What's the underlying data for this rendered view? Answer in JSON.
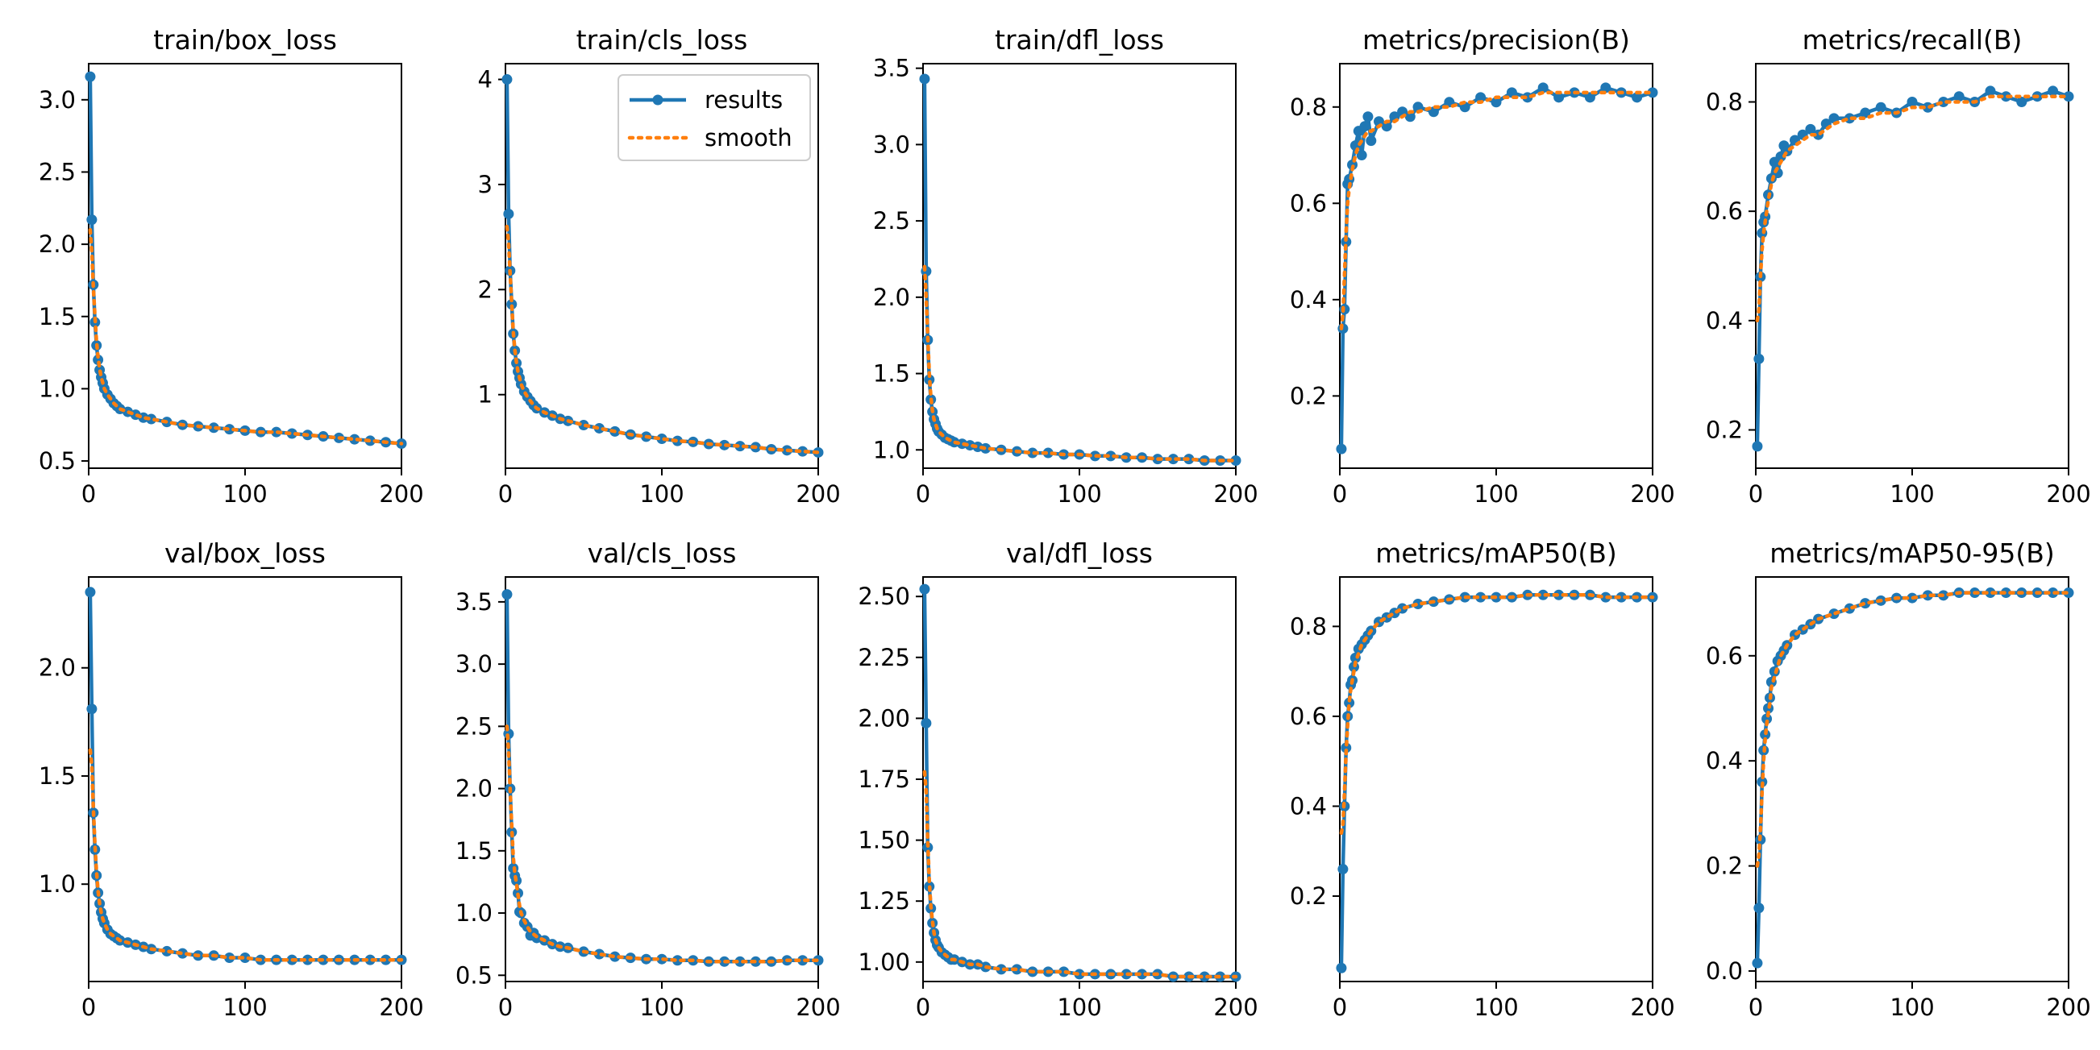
{
  "figure": {
    "series_color": "#1f77b4",
    "smooth_color": "#ff7f0e",
    "legend_results": "results",
    "legend_smooth": "smooth"
  },
  "chart_data": [
    {
      "type": "line",
      "title": "train/box_loss",
      "xlim": [
        0,
        200
      ],
      "ylim": [
        0.45,
        3.25
      ],
      "xticks": [
        0,
        100,
        200
      ],
      "yticks": [
        0.5,
        1.0,
        1.5,
        2.0,
        2.5,
        3.0
      ],
      "x": [
        1,
        2,
        3,
        4,
        5,
        6,
        7,
        8,
        9,
        10,
        12,
        14,
        16,
        18,
        20,
        25,
        30,
        35,
        40,
        50,
        60,
        70,
        80,
        90,
        100,
        110,
        120,
        130,
        140,
        150,
        160,
        170,
        180,
        190,
        200
      ],
      "results": [
        3.16,
        2.17,
        1.72,
        1.46,
        1.3,
        1.2,
        1.13,
        1.08,
        1.04,
        1.0,
        0.96,
        0.93,
        0.9,
        0.88,
        0.86,
        0.84,
        0.82,
        0.8,
        0.79,
        0.77,
        0.75,
        0.74,
        0.73,
        0.72,
        0.71,
        0.7,
        0.7,
        0.69,
        0.68,
        0.67,
        0.66,
        0.65,
        0.64,
        0.63,
        0.62
      ],
      "smooth": [
        2.1,
        1.95,
        1.7,
        1.5,
        1.33,
        1.22,
        1.14,
        1.08,
        1.04,
        1.0,
        0.96,
        0.93,
        0.9,
        0.88,
        0.86,
        0.84,
        0.82,
        0.8,
        0.79,
        0.77,
        0.75,
        0.74,
        0.73,
        0.72,
        0.71,
        0.7,
        0.7,
        0.69,
        0.68,
        0.67,
        0.66,
        0.65,
        0.64,
        0.63,
        0.62
      ]
    },
    {
      "type": "line",
      "title": "train/cls_loss",
      "xlim": [
        0,
        200
      ],
      "ylim": [
        0.3,
        4.15
      ],
      "xticks": [
        0,
        100,
        200
      ],
      "yticks": [
        1,
        2,
        3,
        4
      ],
      "legend": true,
      "x": [
        1,
        2,
        3,
        4,
        5,
        6,
        7,
        8,
        9,
        10,
        12,
        14,
        16,
        18,
        20,
        25,
        30,
        35,
        40,
        50,
        60,
        70,
        80,
        90,
        100,
        110,
        120,
        130,
        140,
        150,
        160,
        170,
        180,
        190,
        200
      ],
      "results": [
        4.0,
        2.72,
        2.18,
        1.86,
        1.58,
        1.42,
        1.3,
        1.22,
        1.16,
        1.1,
        1.03,
        0.98,
        0.94,
        0.9,
        0.87,
        0.83,
        0.8,
        0.77,
        0.75,
        0.71,
        0.68,
        0.65,
        0.62,
        0.6,
        0.58,
        0.56,
        0.55,
        0.53,
        0.52,
        0.51,
        0.5,
        0.48,
        0.47,
        0.46,
        0.45
      ],
      "smooth": [
        2.6,
        2.45,
        2.15,
        1.86,
        1.6,
        1.43,
        1.31,
        1.22,
        1.16,
        1.1,
        1.03,
        0.98,
        0.94,
        0.9,
        0.87,
        0.83,
        0.8,
        0.77,
        0.75,
        0.71,
        0.68,
        0.65,
        0.62,
        0.6,
        0.58,
        0.56,
        0.55,
        0.53,
        0.52,
        0.51,
        0.5,
        0.48,
        0.47,
        0.46,
        0.45
      ]
    },
    {
      "type": "line",
      "title": "train/dfl_loss",
      "xlim": [
        0,
        200
      ],
      "ylim": [
        0.88,
        3.53
      ],
      "xticks": [
        0,
        100,
        200
      ],
      "yticks": [
        1.0,
        1.5,
        2.0,
        2.5,
        3.0,
        3.5
      ],
      "x": [
        1,
        2,
        3,
        4,
        5,
        6,
        7,
        8,
        9,
        10,
        12,
        14,
        16,
        18,
        20,
        25,
        30,
        35,
        40,
        50,
        60,
        70,
        80,
        90,
        100,
        110,
        120,
        130,
        140,
        150,
        160,
        170,
        180,
        190,
        200
      ],
      "results": [
        3.43,
        2.17,
        1.72,
        1.46,
        1.33,
        1.25,
        1.2,
        1.17,
        1.14,
        1.12,
        1.1,
        1.08,
        1.07,
        1.06,
        1.05,
        1.04,
        1.03,
        1.02,
        1.01,
        1.0,
        0.99,
        0.98,
        0.98,
        0.97,
        0.97,
        0.96,
        0.96,
        0.95,
        0.95,
        0.94,
        0.94,
        0.94,
        0.93,
        0.93,
        0.93
      ],
      "smooth": [
        2.2,
        2.0,
        1.75,
        1.5,
        1.35,
        1.26,
        1.2,
        1.17,
        1.14,
        1.12,
        1.1,
        1.08,
        1.07,
        1.06,
        1.05,
        1.04,
        1.03,
        1.02,
        1.01,
        1.0,
        0.99,
        0.98,
        0.98,
        0.97,
        0.97,
        0.96,
        0.96,
        0.95,
        0.95,
        0.94,
        0.94,
        0.94,
        0.93,
        0.93,
        0.93
      ]
    },
    {
      "type": "line",
      "title": "metrics/precision(B)",
      "xlim": [
        0,
        200
      ],
      "ylim": [
        0.05,
        0.89
      ],
      "xticks": [
        0,
        100,
        200
      ],
      "yticks": [
        0.2,
        0.4,
        0.6,
        0.8
      ],
      "x": [
        1,
        2,
        3,
        4,
        5,
        6,
        8,
        10,
        12,
        14,
        16,
        18,
        20,
        25,
        30,
        35,
        40,
        45,
        50,
        60,
        70,
        80,
        90,
        100,
        110,
        120,
        130,
        140,
        150,
        160,
        170,
        180,
        190,
        200
      ],
      "results": [
        0.09,
        0.34,
        0.38,
        0.52,
        0.64,
        0.65,
        0.68,
        0.72,
        0.75,
        0.7,
        0.76,
        0.78,
        0.73,
        0.77,
        0.76,
        0.78,
        0.79,
        0.78,
        0.8,
        0.79,
        0.81,
        0.8,
        0.82,
        0.81,
        0.83,
        0.82,
        0.84,
        0.82,
        0.83,
        0.82,
        0.84,
        0.83,
        0.82,
        0.83
      ],
      "smooth": [
        0.34,
        0.37,
        0.45,
        0.54,
        0.6,
        0.63,
        0.67,
        0.7,
        0.72,
        0.73,
        0.74,
        0.75,
        0.75,
        0.76,
        0.77,
        0.77,
        0.78,
        0.79,
        0.79,
        0.8,
        0.8,
        0.81,
        0.81,
        0.82,
        0.82,
        0.82,
        0.83,
        0.83,
        0.83,
        0.83,
        0.83,
        0.83,
        0.83,
        0.83
      ]
    },
    {
      "type": "line",
      "title": "metrics/recall(B)",
      "xlim": [
        0,
        200
      ],
      "ylim": [
        0.13,
        0.87
      ],
      "xticks": [
        0,
        100,
        200
      ],
      "yticks": [
        0.2,
        0.4,
        0.6,
        0.8
      ],
      "x": [
        1,
        2,
        3,
        4,
        5,
        6,
        8,
        10,
        12,
        14,
        16,
        18,
        20,
        25,
        30,
        35,
        40,
        45,
        50,
        60,
        70,
        80,
        90,
        100,
        110,
        120,
        130,
        140,
        150,
        160,
        170,
        180,
        190,
        200
      ],
      "results": [
        0.17,
        0.33,
        0.48,
        0.56,
        0.58,
        0.59,
        0.63,
        0.66,
        0.69,
        0.67,
        0.7,
        0.72,
        0.71,
        0.73,
        0.74,
        0.75,
        0.74,
        0.76,
        0.77,
        0.77,
        0.78,
        0.79,
        0.78,
        0.8,
        0.79,
        0.8,
        0.81,
        0.8,
        0.82,
        0.81,
        0.8,
        0.81,
        0.82,
        0.81
      ],
      "smooth": [
        0.4,
        0.42,
        0.48,
        0.53,
        0.56,
        0.58,
        0.62,
        0.65,
        0.67,
        0.68,
        0.69,
        0.7,
        0.71,
        0.72,
        0.73,
        0.74,
        0.74,
        0.75,
        0.76,
        0.77,
        0.77,
        0.78,
        0.78,
        0.79,
        0.79,
        0.8,
        0.8,
        0.8,
        0.81,
        0.81,
        0.81,
        0.81,
        0.81,
        0.81
      ]
    },
    {
      "type": "line",
      "title": "val/box_loss",
      "xlim": [
        0,
        200
      ],
      "ylim": [
        0.55,
        2.42
      ],
      "xticks": [
        0,
        100,
        200
      ],
      "yticks": [
        1.0,
        1.5,
        2.0
      ],
      "x": [
        1,
        2,
        3,
        4,
        5,
        6,
        7,
        8,
        9,
        10,
        12,
        14,
        16,
        18,
        20,
        25,
        30,
        35,
        40,
        50,
        60,
        70,
        80,
        90,
        100,
        110,
        120,
        130,
        140,
        150,
        160,
        170,
        180,
        190,
        200
      ],
      "results": [
        2.35,
        1.81,
        1.33,
        1.16,
        1.04,
        0.96,
        0.91,
        0.87,
        0.84,
        0.82,
        0.79,
        0.77,
        0.76,
        0.75,
        0.74,
        0.73,
        0.72,
        0.71,
        0.7,
        0.69,
        0.68,
        0.67,
        0.67,
        0.66,
        0.66,
        0.65,
        0.65,
        0.65,
        0.65,
        0.65,
        0.65,
        0.65,
        0.65,
        0.65,
        0.65
      ],
      "smooth": [
        1.62,
        1.55,
        1.35,
        1.18,
        1.06,
        0.97,
        0.91,
        0.87,
        0.84,
        0.82,
        0.79,
        0.77,
        0.76,
        0.75,
        0.74,
        0.73,
        0.72,
        0.71,
        0.7,
        0.69,
        0.68,
        0.67,
        0.67,
        0.66,
        0.66,
        0.65,
        0.65,
        0.65,
        0.65,
        0.65,
        0.65,
        0.65,
        0.65,
        0.65,
        0.65
      ]
    },
    {
      "type": "line",
      "title": "val/cls_loss",
      "xlim": [
        0,
        200
      ],
      "ylim": [
        0.45,
        3.7
      ],
      "xticks": [
        0,
        100,
        200
      ],
      "yticks": [
        0.5,
        1.0,
        1.5,
        2.0,
        2.5,
        3.0,
        3.5
      ],
      "x": [
        1,
        2,
        3,
        4,
        5,
        6,
        7,
        8,
        9,
        10,
        12,
        14,
        16,
        18,
        20,
        25,
        30,
        35,
        40,
        50,
        60,
        70,
        80,
        90,
        100,
        110,
        120,
        130,
        140,
        150,
        160,
        170,
        180,
        190,
        200
      ],
      "results": [
        3.56,
        2.44,
        2.0,
        1.65,
        1.36,
        1.3,
        1.26,
        1.16,
        1.01,
        1.0,
        0.92,
        0.89,
        0.82,
        0.84,
        0.8,
        0.78,
        0.75,
        0.73,
        0.72,
        0.69,
        0.67,
        0.65,
        0.64,
        0.63,
        0.63,
        0.62,
        0.62,
        0.61,
        0.61,
        0.61,
        0.61,
        0.61,
        0.62,
        0.62,
        0.62
      ],
      "smooth": [
        2.5,
        2.3,
        2.0,
        1.7,
        1.45,
        1.32,
        1.24,
        1.15,
        1.06,
        1.0,
        0.94,
        0.89,
        0.85,
        0.83,
        0.81,
        0.78,
        0.75,
        0.73,
        0.72,
        0.69,
        0.67,
        0.65,
        0.64,
        0.63,
        0.63,
        0.62,
        0.62,
        0.61,
        0.61,
        0.61,
        0.61,
        0.61,
        0.62,
        0.62,
        0.62
      ]
    },
    {
      "type": "line",
      "title": "val/dfl_loss",
      "xlim": [
        0,
        200
      ],
      "ylim": [
        0.92,
        2.58
      ],
      "xticks": [
        0,
        100,
        200
      ],
      "yticks": [
        1.0,
        1.25,
        1.5,
        1.75,
        2.0,
        2.25,
        2.5
      ],
      "x": [
        1,
        2,
        3,
        4,
        5,
        6,
        7,
        8,
        9,
        10,
        12,
        14,
        16,
        18,
        20,
        25,
        30,
        35,
        40,
        50,
        60,
        70,
        80,
        90,
        100,
        110,
        120,
        130,
        140,
        150,
        160,
        170,
        180,
        190,
        200
      ],
      "results": [
        2.53,
        1.98,
        1.47,
        1.31,
        1.22,
        1.16,
        1.12,
        1.09,
        1.07,
        1.06,
        1.04,
        1.03,
        1.02,
        1.01,
        1.01,
        1.0,
        0.99,
        0.99,
        0.98,
        0.97,
        0.97,
        0.96,
        0.96,
        0.96,
        0.95,
        0.95,
        0.95,
        0.95,
        0.95,
        0.95,
        0.94,
        0.94,
        0.94,
        0.94,
        0.94
      ],
      "smooth": [
        1.78,
        1.7,
        1.5,
        1.33,
        1.23,
        1.17,
        1.12,
        1.09,
        1.07,
        1.06,
        1.04,
        1.03,
        1.02,
        1.01,
        1.01,
        1.0,
        0.99,
        0.99,
        0.98,
        0.97,
        0.97,
        0.96,
        0.96,
        0.96,
        0.95,
        0.95,
        0.95,
        0.95,
        0.95,
        0.95,
        0.94,
        0.94,
        0.94,
        0.94,
        0.94
      ]
    },
    {
      "type": "line",
      "title": "metrics/mAP50(B)",
      "xlim": [
        0,
        200
      ],
      "ylim": [
        0.01,
        0.91
      ],
      "xticks": [
        0,
        100,
        200
      ],
      "yticks": [
        0.2,
        0.4,
        0.6,
        0.8
      ],
      "x": [
        1,
        2,
        3,
        4,
        5,
        6,
        7,
        8,
        9,
        10,
        12,
        14,
        16,
        18,
        20,
        25,
        30,
        35,
        40,
        50,
        60,
        70,
        80,
        90,
        100,
        110,
        120,
        130,
        140,
        150,
        160,
        170,
        180,
        190,
        200
      ],
      "results": [
        0.04,
        0.26,
        0.4,
        0.53,
        0.6,
        0.63,
        0.67,
        0.68,
        0.71,
        0.73,
        0.75,
        0.76,
        0.77,
        0.78,
        0.79,
        0.81,
        0.82,
        0.83,
        0.84,
        0.85,
        0.855,
        0.86,
        0.865,
        0.865,
        0.865,
        0.865,
        0.87,
        0.87,
        0.87,
        0.87,
        0.87,
        0.865,
        0.865,
        0.865,
        0.865
      ],
      "smooth": [
        0.34,
        0.36,
        0.43,
        0.52,
        0.58,
        0.63,
        0.66,
        0.68,
        0.7,
        0.72,
        0.74,
        0.76,
        0.77,
        0.78,
        0.79,
        0.81,
        0.82,
        0.83,
        0.84,
        0.85,
        0.855,
        0.86,
        0.865,
        0.865,
        0.865,
        0.865,
        0.87,
        0.87,
        0.87,
        0.87,
        0.87,
        0.865,
        0.865,
        0.865,
        0.865
      ]
    },
    {
      "type": "line",
      "title": "metrics/mAP50-95(B)",
      "xlim": [
        0,
        200
      ],
      "ylim": [
        -0.02,
        0.75
      ],
      "xticks": [
        0,
        100,
        200
      ],
      "yticks": [
        0.0,
        0.2,
        0.4,
        0.6
      ],
      "x": [
        1,
        2,
        3,
        4,
        5,
        6,
        7,
        8,
        9,
        10,
        12,
        14,
        16,
        18,
        20,
        25,
        30,
        35,
        40,
        50,
        60,
        70,
        80,
        90,
        100,
        110,
        120,
        130,
        140,
        150,
        160,
        170,
        180,
        190,
        200
      ],
      "results": [
        0.015,
        0.12,
        0.25,
        0.36,
        0.42,
        0.45,
        0.48,
        0.5,
        0.52,
        0.55,
        0.57,
        0.59,
        0.6,
        0.61,
        0.62,
        0.64,
        0.65,
        0.66,
        0.67,
        0.68,
        0.69,
        0.7,
        0.705,
        0.71,
        0.71,
        0.715,
        0.715,
        0.72,
        0.72,
        0.72,
        0.72,
        0.72,
        0.72,
        0.72,
        0.72
      ],
      "smooth": [
        0.2,
        0.22,
        0.27,
        0.34,
        0.4,
        0.44,
        0.47,
        0.49,
        0.51,
        0.54,
        0.56,
        0.58,
        0.6,
        0.61,
        0.62,
        0.64,
        0.65,
        0.66,
        0.67,
        0.68,
        0.69,
        0.7,
        0.705,
        0.71,
        0.71,
        0.715,
        0.715,
        0.72,
        0.72,
        0.72,
        0.72,
        0.72,
        0.72,
        0.72,
        0.72
      ]
    }
  ]
}
